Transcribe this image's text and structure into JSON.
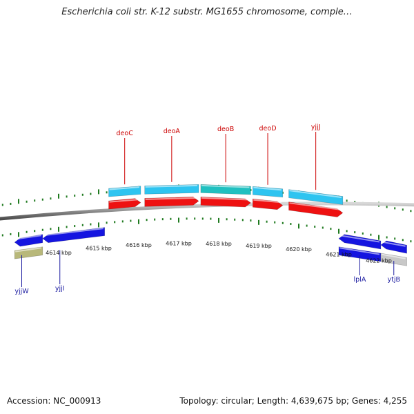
{
  "title": "Escherichia coli str. K-12 substr. MG1655 chromosome, comple…",
  "footer": {
    "accession": "Accession: NC_000913",
    "summary": "Topology: circular; Length: 4,639,675 bp; Genes: 4,255"
  },
  "colors": {
    "forward_gene": "#2ec4f0",
    "forward_gene_alt": "#20c0c0",
    "cds": "#ee1111",
    "reverse_gene": "#1515e0",
    "pseudo": "#b8b87a",
    "grey_gene": "#c8c8c8",
    "backbone": "#888888",
    "ticks": "#1f7a1f",
    "label_forward": "#cc0000",
    "label_reverse": "#1a1aa0"
  },
  "scale": {
    "unit": "kbp",
    "start_kbp": 4613,
    "end_kbp": 4623
  },
  "scale_labels": [
    "4614 kbp",
    "4615 kbp",
    "4616 kbp",
    "4617 kbp",
    "4618 kbp",
    "4619 kbp",
    "4620 kbp",
    "4621 kbp",
    "4622 kbp"
  ],
  "scale_label_kbp": [
    4614,
    4615,
    4616,
    4617,
    4618,
    4619,
    4620,
    4621,
    4622
  ],
  "genes_forward": [
    {
      "name": "deoC",
      "start_kbp": 4615.25,
      "end_kbp": 4616.05
    },
    {
      "name": "deoA",
      "start_kbp": 4616.15,
      "end_kbp": 4617.5
    },
    {
      "name": "deoB",
      "start_kbp": 4617.55,
      "end_kbp": 4618.8
    },
    {
      "name": "deoD",
      "start_kbp": 4618.85,
      "end_kbp": 4619.6
    },
    {
      "name": "yjjJ",
      "start_kbp": 4619.75,
      "end_kbp": 4621.1
    }
  ],
  "genes_reverse": [
    {
      "name": "yjjW",
      "start_kbp": 4612.9,
      "end_kbp": 4613.6
    },
    {
      "name": "yjjI",
      "start_kbp": 4613.6,
      "end_kbp": 4615.15
    },
    {
      "name": "lplA",
      "start_kbp": 4621.0,
      "end_kbp": 4622.05
    },
    {
      "name": "ytjB",
      "start_kbp": 4622.05,
      "end_kbp": 4622.7
    }
  ]
}
